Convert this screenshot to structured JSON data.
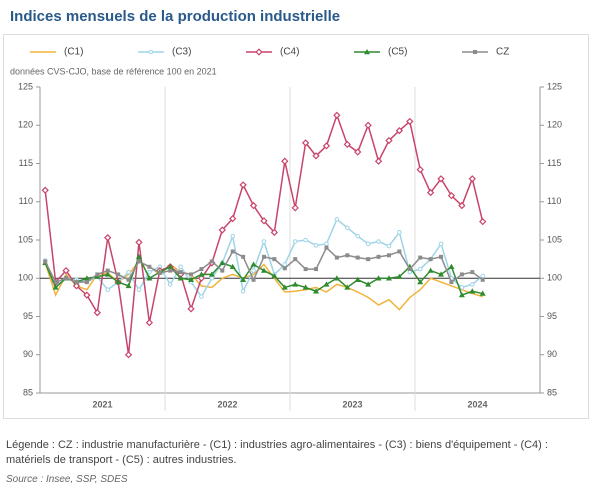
{
  "chart_data": {
    "type": "line",
    "title": "Indices mensuels de la production industrielle",
    "subtitle": "données CVS-CJO, base de référence 100 en 2021",
    "categories": [
      null,
      null,
      null,
      null,
      null,
      null,
      null,
      null,
      null,
      null,
      null,
      null,
      null,
      null,
      null,
      null,
      null,
      null,
      null,
      null,
      null,
      null,
      null,
      null,
      null,
      null,
      null,
      null,
      null,
      null,
      null,
      null,
      null,
      null,
      null,
      null,
      null,
      null,
      null,
      null,
      null,
      null,
      null
    ],
    "year_labels": [
      "2021",
      "2022",
      "2023",
      "2024"
    ],
    "ylim": [
      85,
      125
    ],
    "yticks": [
      85,
      90,
      95,
      100,
      105,
      110,
      115,
      120,
      125
    ],
    "y2lim": [
      85,
      125
    ],
    "y2ticks": [
      85,
      90,
      95,
      100,
      105,
      110,
      115,
      120,
      125
    ],
    "reference_line": 100,
    "legend": "top",
    "series": [
      {
        "name": "(C1)",
        "color": "#f0b43c",
        "marker": "none",
        "values": [
          102,
          97.8,
          100.5,
          99,
          98.5,
          100.5,
          100.7,
          99.5,
          100.5,
          102.2,
          101.5,
          100.5,
          101.8,
          100.8,
          100.5,
          99,
          98.8,
          100,
          100.5,
          100,
          100.5,
          101.8,
          100,
          98.2,
          98.3,
          98.5,
          98.8,
          98.2,
          99.2,
          98.8,
          98.2,
          97.5,
          96.5,
          97.2,
          95.9,
          97.5,
          98.5,
          100,
          99.5,
          99,
          98.5,
          98,
          97.6
        ]
      },
      {
        "name": "(C3)",
        "color": "#9ed4e8",
        "marker": "circle",
        "values": [
          102.3,
          99,
          100,
          99.8,
          99.5,
          100.2,
          98.5,
          99.5,
          100.8,
          98.5,
          100.8,
          101.5,
          99.2,
          101.5,
          99.5,
          97.6,
          100,
          102,
          105.5,
          98.3,
          101,
          104.8,
          100.5,
          101.8,
          104.8,
          105,
          104.3,
          104.5,
          107.7,
          106.6,
          105.5,
          104.5,
          104.8,
          104.2,
          106,
          100.8,
          101.2,
          102.5,
          104.5,
          100,
          98.8,
          99.2,
          100.3
        ]
      },
      {
        "name": "(C4)",
        "color": "#c8446a",
        "marker": "diamond",
        "values": [
          111.5,
          99.5,
          101,
          99,
          97.8,
          95.5,
          105.3,
          99.5,
          90,
          104.7,
          94.2,
          101,
          101.5,
          100.5,
          96,
          100,
          102,
          106.3,
          107.8,
          112.2,
          109.5,
          107.5,
          106,
          115.3,
          109.2,
          117.7,
          116,
          117.3,
          121.3,
          117.5,
          116.5,
          120,
          115.3,
          118,
          119.3,
          120.5,
          114.2,
          111.2,
          113,
          110.8,
          109.5,
          113,
          107.4
        ]
      },
      {
        "name": "(C5)",
        "color": "#2e8b2e",
        "marker": "triangle",
        "values": [
          102,
          98.8,
          100,
          99.5,
          100,
          100.2,
          100.5,
          99.5,
          99,
          102.8,
          100,
          100.8,
          101.5,
          100,
          99.8,
          100.5,
          100.5,
          102,
          101.5,
          99.8,
          101.8,
          101,
          100.3,
          98.8,
          99.2,
          98.8,
          98.3,
          99.2,
          100,
          98.8,
          99.8,
          99.2,
          100,
          100,
          100.2,
          101.5,
          99.5,
          101,
          100.5,
          101.5,
          97.8,
          98.3,
          98
        ]
      },
      {
        "name": "CZ",
        "color": "#8c8c8c",
        "marker": "square",
        "values": [
          102.2,
          99.5,
          100,
          99.5,
          99.5,
          100.5,
          101,
          100.5,
          99.8,
          102.2,
          101.5,
          100.7,
          101,
          100.8,
          100.5,
          101.2,
          102.2,
          101,
          103.5,
          102.8,
          99.8,
          102.8,
          102.5,
          101.3,
          102.5,
          101.2,
          101.2,
          104,
          102.7,
          103,
          102.7,
          102.5,
          102.8,
          103,
          103.5,
          101.2,
          102.7,
          102.5,
          102.8,
          99.5,
          100.5,
          100.8,
          99.8
        ]
      }
    ]
  },
  "footer": {
    "legend_note": "Légende : CZ : industrie manufacturière - (C1) : industries agro-alimentaires - (C3) : biens d'équipement - (C4) : matériels de transport - (C5) : autres industries.",
    "source": "Source : Insee, SSP, SDES"
  }
}
